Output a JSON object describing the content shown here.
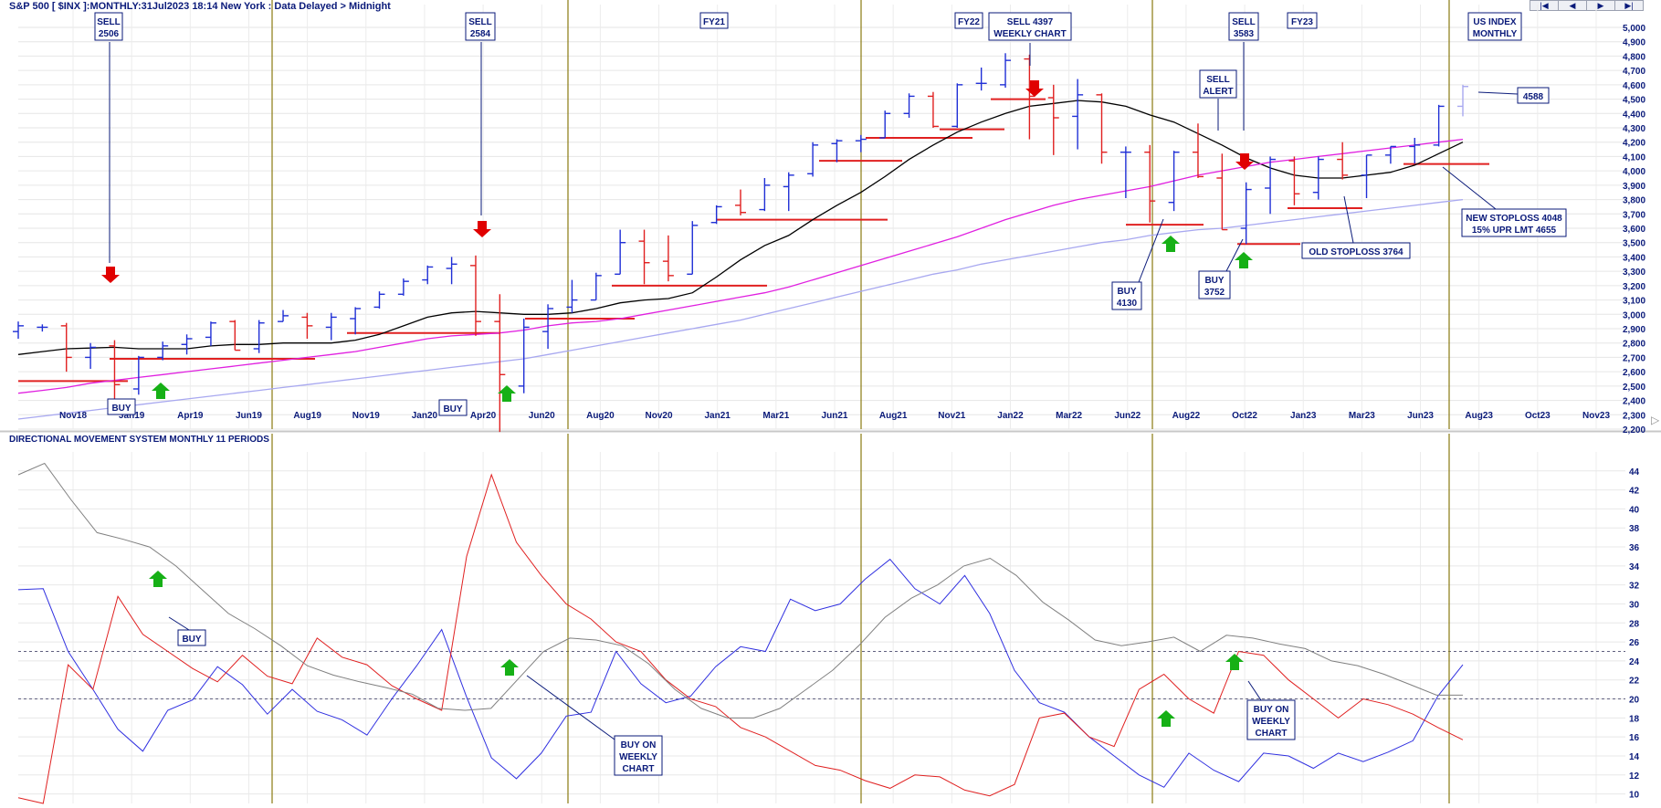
{
  "header": {
    "title": "S&P 500 [ $INX ]:MONTHLY:31Jul2023 18:14 New York : Data Delayed > Midnight",
    "nav_buttons": [
      "|◀",
      "◀",
      "▶",
      "▶|"
    ]
  },
  "colors": {
    "up_bar": "#1f2fd6",
    "down_bar": "#e02020",
    "ma_short": "#000000",
    "ma_mid": "#e020e0",
    "ma_long": "#a8a8f0",
    "vertical_marker": "#8a7a10",
    "annotation_text": "#0a1a7a",
    "buy_arrow": "#16b016",
    "sell_arrow": "#e00000",
    "dm_plus": "#3030e0",
    "dm_minus": "#e02020",
    "adx": "#808080"
  },
  "price_axis": {
    "min": 2200,
    "max": 5000,
    "ticks": [
      "2,200",
      "2,300",
      "2,400",
      "2,500",
      "2,600",
      "2,700",
      "2,800",
      "2,900",
      "3,000",
      "3,100",
      "3,200",
      "3,300",
      "3,400",
      "3,500",
      "3,600",
      "3,700",
      "3,800",
      "3,900",
      "4,000",
      "4,100",
      "4,200",
      "4,300",
      "4,400",
      "4,500",
      "4,600",
      "4,700",
      "4,800",
      "4,900",
      "5,000"
    ]
  },
  "x_axis": {
    "labels": [
      "Nov18",
      "Jan19",
      "Apr19",
      "Jun19",
      "Aug19",
      "Nov19",
      "Jan20",
      "Apr20",
      "Jun20",
      "Aug20",
      "Nov20",
      "Jan21",
      "Mar21",
      "Jun21",
      "Aug21",
      "Nov21",
      "Jan22",
      "Mar22",
      "Jun22",
      "Aug22",
      "Oct22",
      "Jan23",
      "Mar23",
      "Jun23",
      "Aug23",
      "Oct23",
      "Nov23"
    ]
  },
  "indicator": {
    "title": "DIRECTIONAL MOVEMENT SYSTEM MONTHLY 11 PERIODS",
    "min": 9,
    "max": 46,
    "ticks": [
      "10",
      "12",
      "14",
      "16",
      "18",
      "20",
      "22",
      "24",
      "26",
      "28",
      "30",
      "32",
      "34",
      "36",
      "38",
      "40",
      "42",
      "44"
    ],
    "reference_lines": [
      20,
      25
    ]
  },
  "annotations": {
    "sell_2506": [
      "SELL",
      "2506"
    ],
    "sell_2584": [
      "SELL",
      "2584"
    ],
    "fy21": "FY21",
    "fy22": "FY22",
    "sell_4397": [
      "SELL 4397",
      "WEEKLY CHART"
    ],
    "sell_3583": [
      "SELL",
      "3583"
    ],
    "fy23": "FY23",
    "us_index": [
      "US INDEX",
      "MONTHLY"
    ],
    "sell_alert": [
      "SELL",
      "ALERT"
    ],
    "last_price": "4588",
    "new_stoploss": [
      "NEW STOPLOSS 4048",
      "15% UPR LMT 4655"
    ],
    "old_stoploss": "OLD STOPLOSS 3764",
    "buy_4130": [
      "BUY",
      "4130"
    ],
    "buy_3752": [
      "BUY",
      "3752"
    ],
    "buy_low_1": "BUY",
    "buy_low_2": "BUY",
    "buy_ind": "BUY",
    "buy_weekly_1": [
      "BUY ON",
      "WEEKLY",
      "CHART"
    ],
    "buy_weekly_2": [
      "BUY ON",
      "WEEKLY",
      "CHART"
    ]
  },
  "chart_data": [
    {
      "type": "ohlc",
      "title": "S&P 500 [ $INX ]:MONTHLY:31Jul2023 18:14 New York : Data Delayed > Midnight",
      "series": [
        {
          "name": "S&P 500 monthly bars",
          "bars": [
            {
              "o": 2880,
              "h": 2950,
              "l": 2830,
              "c": 2920
            },
            {
              "o": 2910,
              "h": 2930,
              "l": 2880,
              "c": 2910
            },
            {
              "o": 2920,
              "h": 2940,
              "l": 2600,
              "c": 2700
            },
            {
              "o": 2700,
              "h": 2800,
              "l": 2620,
              "c": 2770
            },
            {
              "o": 2780,
              "h": 2820,
              "l": 2350,
              "c": 2510
            },
            {
              "o": 2480,
              "h": 2710,
              "l": 2440,
              "c": 2700
            },
            {
              "o": 2700,
              "h": 2810,
              "l": 2680,
              "c": 2780
            },
            {
              "o": 2790,
              "h": 2860,
              "l": 2720,
              "c": 2830
            },
            {
              "o": 2840,
              "h": 2950,
              "l": 2780,
              "c": 2940
            },
            {
              "o": 2950,
              "h": 2960,
              "l": 2750,
              "c": 2750
            },
            {
              "o": 2760,
              "h": 2960,
              "l": 2730,
              "c": 2940
            },
            {
              "o": 2950,
              "h": 3030,
              "l": 2950,
              "c": 2990
            },
            {
              "o": 2980,
              "h": 3010,
              "l": 2830,
              "c": 2920
            },
            {
              "o": 2910,
              "h": 3010,
              "l": 2820,
              "c": 2980
            },
            {
              "o": 2970,
              "h": 3050,
              "l": 2860,
              "c": 3040
            },
            {
              "o": 3050,
              "h": 3160,
              "l": 3040,
              "c": 3140
            },
            {
              "o": 3140,
              "h": 3250,
              "l": 3130,
              "c": 3230
            },
            {
              "o": 3240,
              "h": 3340,
              "l": 3210,
              "c": 3330
            },
            {
              "o": 3320,
              "h": 3400,
              "l": 3210,
              "c": 3350
            },
            {
              "o": 3340,
              "h": 3410,
              "l": 2850,
              "c": 2950
            },
            {
              "o": 2950,
              "h": 3140,
              "l": 2180,
              "c": 2580
            },
            {
              "o": 2500,
              "h": 2970,
              "l": 2450,
              "c": 2910
            },
            {
              "o": 2880,
              "h": 3070,
              "l": 2760,
              "c": 3040
            },
            {
              "o": 3050,
              "h": 3240,
              "l": 3010,
              "c": 3100
            },
            {
              "o": 3100,
              "h": 3290,
              "l": 3100,
              "c": 3270
            },
            {
              "o": 3280,
              "h": 3590,
              "l": 3280,
              "c": 3500
            },
            {
              "o": 3510,
              "h": 3590,
              "l": 3210,
              "c": 3360
            },
            {
              "o": 3370,
              "h": 3550,
              "l": 3230,
              "c": 3270
            },
            {
              "o": 3280,
              "h": 3650,
              "l": 3280,
              "c": 3620
            },
            {
              "o": 3640,
              "h": 3760,
              "l": 3630,
              "c": 3750
            },
            {
              "o": 3760,
              "h": 3870,
              "l": 3690,
              "c": 3710
            },
            {
              "o": 3730,
              "h": 3950,
              "l": 3720,
              "c": 3900
            },
            {
              "o": 3890,
              "h": 3990,
              "l": 3720,
              "c": 3970
            },
            {
              "o": 3980,
              "h": 4200,
              "l": 3960,
              "c": 4180
            },
            {
              "o": 4190,
              "h": 4220,
              "l": 4060,
              "c": 4210
            },
            {
              "o": 4210,
              "h": 4250,
              "l": 4130,
              "c": 4220
            },
            {
              "o": 4230,
              "h": 4420,
              "l": 4230,
              "c": 4400
            },
            {
              "o": 4400,
              "h": 4540,
              "l": 4370,
              "c": 4520
            },
            {
              "o": 4520,
              "h": 4550,
              "l": 4300,
              "c": 4310
            },
            {
              "o": 4310,
              "h": 4610,
              "l": 4300,
              "c": 4600
            },
            {
              "o": 4610,
              "h": 4720,
              "l": 4560,
              "c": 4610
            },
            {
              "o": 4600,
              "h": 4820,
              "l": 4580,
              "c": 4770
            },
            {
              "o": 4780,
              "h": 4810,
              "l": 4220,
              "c": 4520
            },
            {
              "o": 4510,
              "h": 4600,
              "l": 4110,
              "c": 4370
            },
            {
              "o": 4380,
              "h": 4640,
              "l": 4150,
              "c": 4530
            },
            {
              "o": 4530,
              "h": 4540,
              "l": 4050,
              "c": 4130
            },
            {
              "o": 4130,
              "h": 4170,
              "l": 3810,
              "c": 4130
            },
            {
              "o": 4130,
              "h": 4180,
              "l": 3640,
              "c": 3790
            },
            {
              "o": 3780,
              "h": 4140,
              "l": 3720,
              "c": 4130
            },
            {
              "o": 4130,
              "h": 4330,
              "l": 3950,
              "c": 3960
            },
            {
              "o": 3950,
              "h": 4120,
              "l": 3590,
              "c": 3590
            },
            {
              "o": 3600,
              "h": 3920,
              "l": 3490,
              "c": 3870
            },
            {
              "o": 3880,
              "h": 4100,
              "l": 3700,
              "c": 4080
            },
            {
              "o": 4070,
              "h": 4100,
              "l": 3760,
              "c": 3840
            },
            {
              "o": 3850,
              "h": 4100,
              "l": 3800,
              "c": 4080
            },
            {
              "o": 4080,
              "h": 4200,
              "l": 3940,
              "c": 3970
            },
            {
              "o": 3970,
              "h": 4110,
              "l": 3810,
              "c": 4110
            },
            {
              "o": 4110,
              "h": 4170,
              "l": 4050,
              "c": 4170
            },
            {
              "o": 4170,
              "h": 4230,
              "l": 4050,
              "c": 4180
            },
            {
              "o": 4180,
              "h": 4460,
              "l": 4170,
              "c": 4450
            },
            {
              "o": 4450,
              "h": 4600,
              "l": 4380,
              "c": 4588
            }
          ]
        },
        {
          "name": "ma_short",
          "values": [
            2720,
            2740,
            2760,
            2765,
            2770,
            2760,
            2760,
            2760,
            2780,
            2790,
            2790,
            2800,
            2800,
            2800,
            2820,
            2860,
            2920,
            2980,
            3010,
            3020,
            3010,
            3000,
            3000,
            3010,
            3040,
            3080,
            3100,
            3110,
            3150,
            3260,
            3380,
            3480,
            3550,
            3660,
            3760,
            3850,
            3960,
            4080,
            4180,
            4270,
            4340,
            4400,
            4450,
            4470,
            4490,
            4480,
            4450,
            4390,
            4340,
            4260,
            4180,
            4090,
            4020,
            3970,
            3950,
            3950,
            3970,
            3990,
            4040,
            4120,
            4200
          ]
        },
        {
          "name": "ma_mid",
          "values": [
            2450,
            2470,
            2490,
            2520,
            2540,
            2560,
            2580,
            2600,
            2620,
            2640,
            2660,
            2680,
            2700,
            2720,
            2740,
            2770,
            2800,
            2830,
            2850,
            2860,
            2870,
            2890,
            2920,
            2940,
            2950,
            2970,
            3000,
            3030,
            3060,
            3090,
            3120,
            3150,
            3190,
            3240,
            3290,
            3340,
            3390,
            3440,
            3490,
            3540,
            3600,
            3660,
            3710,
            3760,
            3800,
            3830,
            3860,
            3890,
            3930,
            3970,
            4000,
            4030,
            4060,
            4080,
            4100,
            4120,
            4140,
            4160,
            4180,
            4200,
            4220
          ]
        },
        {
          "name": "ma_long",
          "values": [
            2270,
            2290,
            2310,
            2330,
            2350,
            2370,
            2390,
            2410,
            2430,
            2450,
            2470,
            2490,
            2510,
            2530,
            2550,
            2570,
            2590,
            2610,
            2630,
            2650,
            2670,
            2690,
            2720,
            2750,
            2780,
            2810,
            2840,
            2870,
            2900,
            2930,
            2960,
            3000,
            3040,
            3080,
            3120,
            3160,
            3200,
            3240,
            3280,
            3310,
            3350,
            3380,
            3410,
            3440,
            3470,
            3500,
            3520,
            3550,
            3570,
            3590,
            3600,
            3620,
            3640,
            3660,
            3680,
            3700,
            3720,
            3740,
            3760,
            3780,
            3800
          ]
        }
      ]
    },
    {
      "type": "line",
      "title": "DIRECTIONAL MOVEMENT SYSTEM MONTHLY 11 PERIODS",
      "ylim": [
        9,
        46
      ],
      "series": [
        {
          "name": "dm_plus",
          "values": [
            31.5,
            31.6,
            25,
            21,
            16.8,
            14.5,
            18.8,
            19.9,
            23.4,
            21.5,
            18.4,
            21,
            18.7,
            17.8,
            16.2,
            20,
            23.5,
            27.3,
            20.2,
            13.8,
            11.6,
            14.3,
            18.2,
            18.6,
            25,
            21.6,
            19.6,
            20.3,
            23.4,
            25.5,
            25,
            30.5,
            29.3,
            30,
            32.6,
            34.7,
            31.6,
            30,
            33,
            29,
            23,
            19.6,
            18.6,
            16,
            14,
            12,
            10.7,
            14.3,
            12.5,
            11.3,
            14.3,
            14,
            12.7,
            14.3,
            13.4,
            14.4,
            15.6,
            20.3,
            23.6
          ]
        },
        {
          "name": "dm_minus",
          "values": [
            9.6,
            9,
            23.6,
            21,
            30.8,
            26.8,
            25,
            23.2,
            21.8,
            24.6,
            22.4,
            21.6,
            26.4,
            24.4,
            23.6,
            21.4,
            20,
            18.8,
            35,
            43.6,
            36.5,
            33,
            30,
            28.4,
            26,
            25,
            22,
            20,
            19.2,
            17,
            16,
            14.5,
            13,
            12.5,
            11.4,
            10.6,
            12,
            11.8,
            10.4,
            9.8,
            11,
            18,
            18.5,
            16,
            15,
            21,
            22.6,
            20,
            18.5,
            25,
            24.6,
            22,
            20,
            18,
            20,
            19.4,
            18.4,
            17,
            15.7
          ]
        },
        {
          "name": "adx",
          "values": [
            43.6,
            44.8,
            41,
            37.5,
            36.8,
            36,
            34,
            31.5,
            29,
            27.4,
            25.6,
            23.5,
            22.5,
            21.8,
            21.2,
            20.5,
            19,
            18.8,
            19,
            22,
            25,
            26.4,
            26.2,
            25.6,
            23.7,
            21,
            19,
            18,
            18,
            19,
            21,
            23,
            25.6,
            28.6,
            30.6,
            32,
            34,
            34.8,
            33,
            30.2,
            28.3,
            26.2,
            25.6,
            26,
            26.5,
            25,
            26.7,
            26.4,
            25.8,
            25.3,
            24,
            23.5,
            22.6,
            21.5,
            20.4,
            20.4
          ]
        }
      ]
    }
  ]
}
